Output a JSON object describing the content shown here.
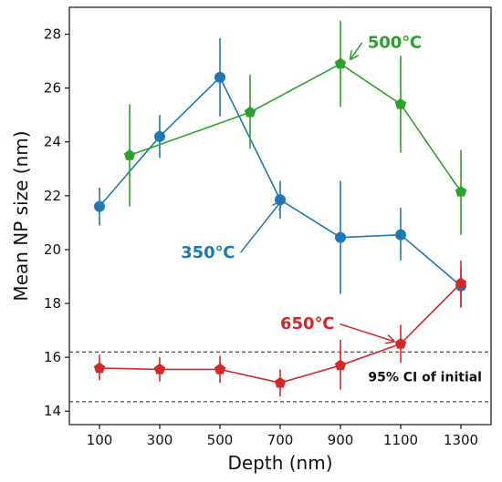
{
  "chart_data": {
    "type": "line",
    "xlabel": "Depth (nm)",
    "ylabel": "Mean NP size (nm)",
    "xlim": [
      0,
      1400
    ],
    "ylim": [
      13.5,
      29
    ],
    "xticks": [
      100,
      300,
      500,
      700,
      900,
      1100,
      1300
    ],
    "yticks": [
      14,
      16,
      18,
      20,
      22,
      24,
      26,
      28
    ],
    "grid": false,
    "series": [
      {
        "name": "350℃",
        "color": "#1f77b4",
        "marker": "circle",
        "x": [
          100,
          300,
          500,
          700,
          900,
          1100,
          1300
        ],
        "y": [
          21.6,
          24.2,
          26.4,
          21.85,
          20.45,
          20.55,
          18.65
        ],
        "err_low": [
          20.9,
          23.4,
          24.95,
          21.15,
          18.35,
          19.6,
          17.85
        ],
        "err_high": [
          22.3,
          25.0,
          27.85,
          22.55,
          22.55,
          21.55,
          19.3
        ]
      },
      {
        "name": "500℃",
        "color": "#2ca02c",
        "marker": "pentagon",
        "x": [
          200,
          600,
          900,
          1100,
          1300
        ],
        "y": [
          23.5,
          25.1,
          26.9,
          25.4,
          22.15
        ],
        "err_low": [
          21.6,
          23.75,
          25.3,
          23.6,
          20.55
        ],
        "err_high": [
          25.4,
          26.5,
          28.5,
          27.2,
          23.7
        ]
      },
      {
        "name": "650℃",
        "color": "#d62728",
        "marker": "pentagon",
        "x": [
          100,
          300,
          500,
          700,
          900,
          1100,
          1300
        ],
        "y": [
          15.6,
          15.55,
          15.55,
          15.05,
          15.7,
          16.5,
          18.75
        ],
        "err_low": [
          15.15,
          15.1,
          15.05,
          14.55,
          14.8,
          15.8,
          17.85
        ],
        "err_high": [
          16.1,
          16.0,
          16.05,
          15.55,
          16.65,
          17.2,
          19.6
        ]
      }
    ],
    "ci_band": {
      "label": "95% CI of initial",
      "lower": 14.35,
      "upper": 16.2
    },
    "annotations": [
      {
        "series": "350℃",
        "text": "350℃",
        "text_xy": [
          460,
          19.7
        ],
        "arrow_to": [
          700,
          21.75
        ]
      },
      {
        "series": "500℃",
        "text": "500℃",
        "text_xy": [
          1080,
          27.5
        ],
        "arrow_to": [
          935,
          27.1
        ]
      },
      {
        "series": "650℃",
        "text": "650℃",
        "text_xy": [
          790,
          17.05
        ],
        "arrow_to": [
          1075,
          16.6
        ]
      }
    ]
  }
}
